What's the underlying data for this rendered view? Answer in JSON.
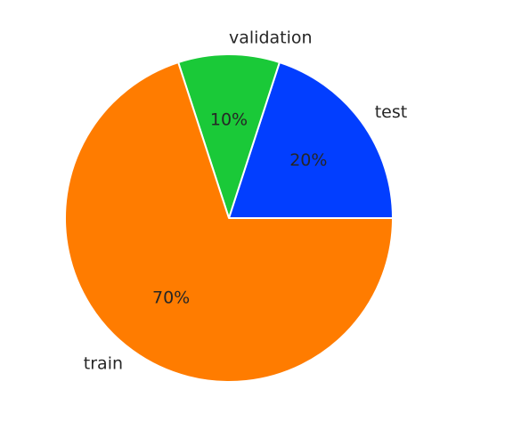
{
  "chart_data": {
    "type": "pie",
    "categories": [
      "test",
      "validation",
      "train"
    ],
    "values": [
      20,
      10,
      70
    ],
    "percent_labels": [
      "20%",
      "10%",
      "70%"
    ],
    "colors": [
      "#023eff",
      "#1ac938",
      "#ff7c00"
    ],
    "start_angle_deg": 0,
    "direction": "counterclockwise",
    "legend": "none",
    "title": ""
  }
}
